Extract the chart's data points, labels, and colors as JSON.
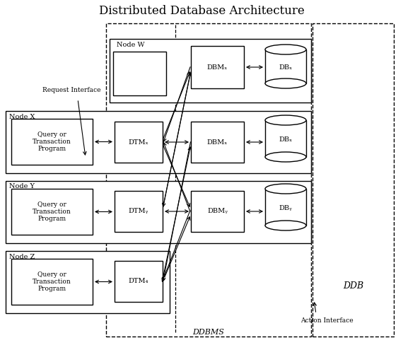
{
  "title": "Distributed Database Architecture",
  "bg_color": "#ffffff",
  "ddbms_label": "DDBMS",
  "ddb_label": "DDB",
  "request_interface": "Request Interface",
  "action_interface": "Action Interface",
  "qtp_label": "Query or\nTransaction\nProgram",
  "node_w": "Node W",
  "node_x": "Node X",
  "node_y": "Node Y",
  "node_z": "Node Z",
  "dtm_x": "DTMₓ",
  "dtm_y": "DTMᵧ",
  "dtm_z": "DTM₄",
  "dbm_w": "DBMₓ",
  "dbm_x": "DBMₓ",
  "dbm_y": "DBMᵧ",
  "db_w": "DBₓ",
  "db_x": "DBₓ",
  "db_y": "DBᵧ"
}
